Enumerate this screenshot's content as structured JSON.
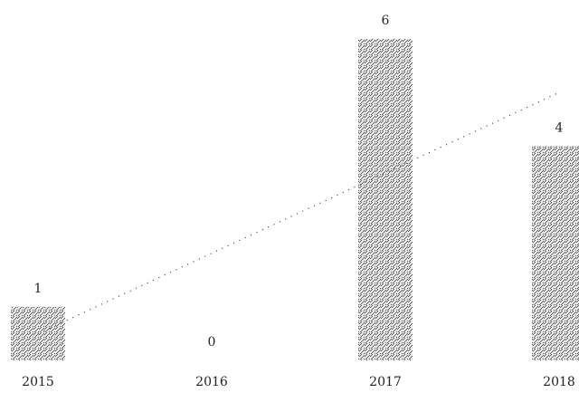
{
  "chart_data": {
    "type": "bar",
    "categories": [
      "2015",
      "2016",
      "2017",
      "2018"
    ],
    "values": [
      1,
      0,
      6,
      4
    ],
    "color": "#555555",
    "ylim": [
      0,
      6
    ],
    "trendline": "linear"
  }
}
